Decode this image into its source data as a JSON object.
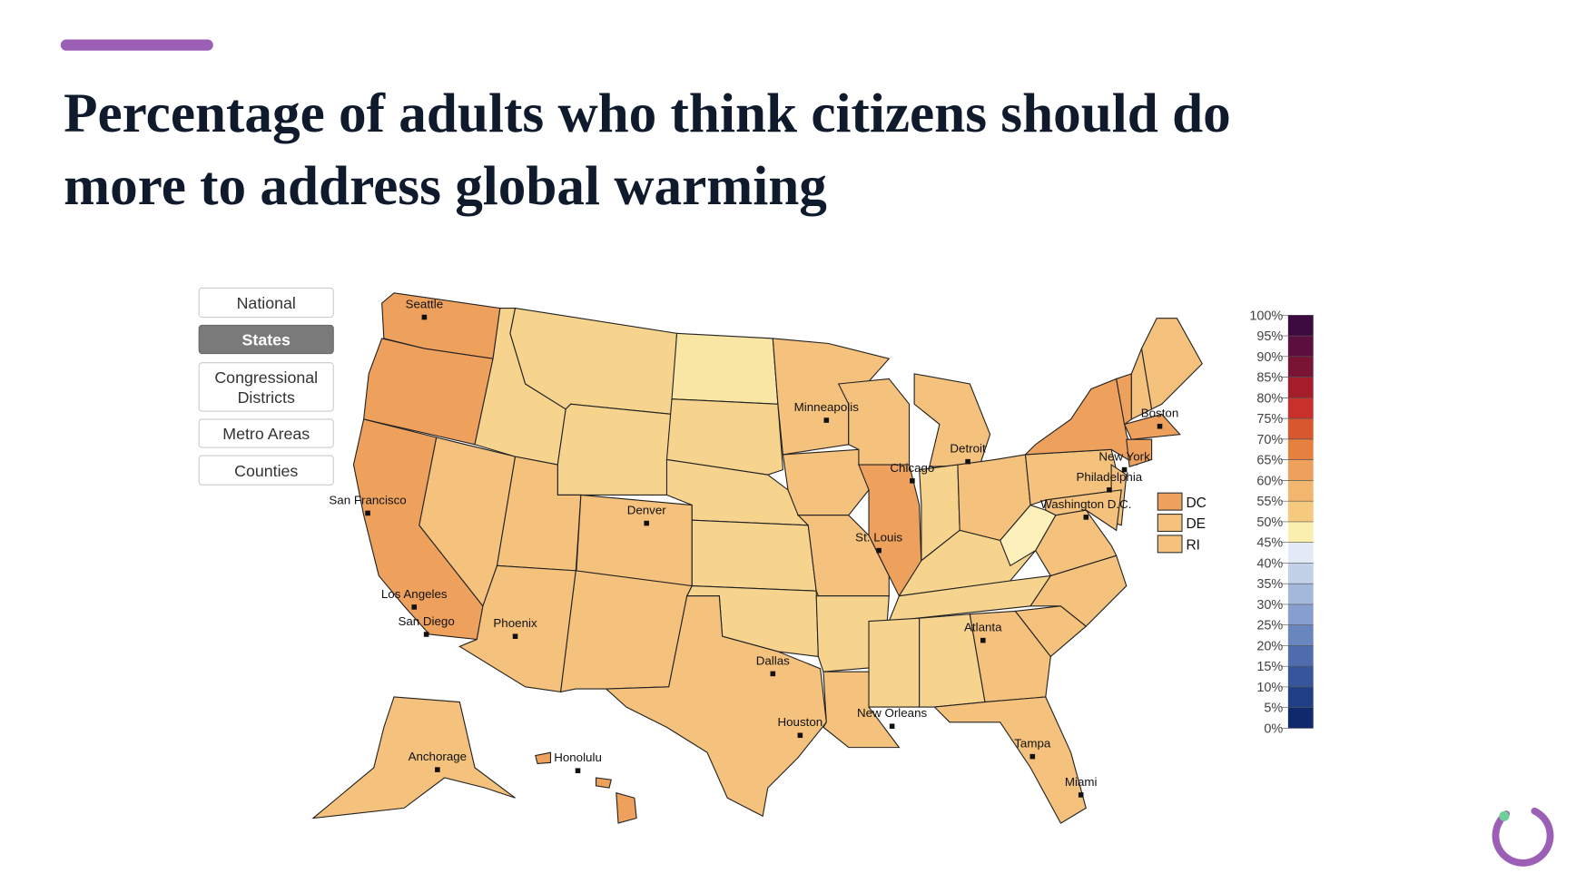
{
  "header": {
    "title_lines": [
      "Percentage of adults who think citizens should do",
      "more to address global warming"
    ]
  },
  "buttons": [
    {
      "lines": [
        "National"
      ]
    },
    {
      "lines": [
        "States"
      ]
    },
    {
      "lines": [
        "Congressional",
        "Districts"
      ]
    },
    {
      "lines": [
        "Metro Areas"
      ]
    },
    {
      "lines": [
        "Counties"
      ]
    }
  ],
  "map": {
    "cities": [
      "Seattle",
      "Minneapolis",
      "Chicago",
      "Detroit",
      "Boston",
      "New York",
      "Philadelphia",
      "Washington D.C.",
      "San Francisco",
      "Denver",
      "St. Louis",
      "Los Angeles",
      "San Diego",
      "Phoenix",
      "Atlanta",
      "Dallas",
      "Houston",
      "New Orleans",
      "Tampa",
      "Miami",
      "Anchorage",
      "Honolulu"
    ],
    "small_states": [
      "DC",
      "DE",
      "RI"
    ]
  },
  "legend": {
    "labels": [
      "100%",
      "95%",
      "90%",
      "85%",
      "80%",
      "75%",
      "70%",
      "65%",
      "60%",
      "55%",
      "50%",
      "45%",
      "40%",
      "35%",
      "30%",
      "25%",
      "20%",
      "15%",
      "10%",
      "5%",
      "0%"
    ]
  }
}
